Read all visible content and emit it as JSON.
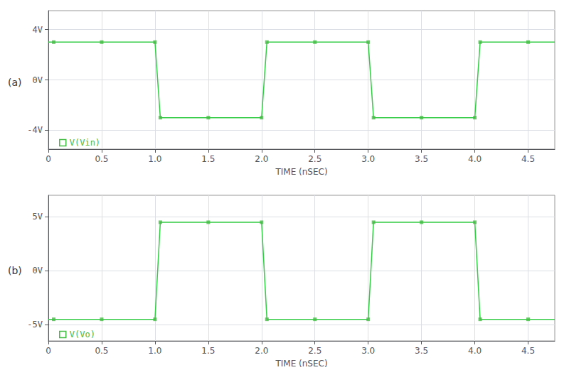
{
  "chart_data": [
    {
      "type": "line",
      "title": "(a)",
      "xlabel": "TIME (nSEC)",
      "xlim": [
        0,
        4.75
      ],
      "xticks": [
        0,
        0.5,
        {
          "value": 1.0,
          "label": "1.0"
        },
        1.5,
        {
          "value": 2.0,
          "label": "2.0"
        },
        2.5,
        {
          "value": 3.0,
          "label": "3.0"
        },
        3.5,
        {
          "value": 4.0,
          "label": "4.0"
        },
        4.5
      ],
      "ylim": [
        -5.5,
        5.5
      ],
      "yticks": [
        {
          "value": 4,
          "label": "4V"
        },
        {
          "value": 0,
          "label": "0V"
        },
        {
          "value": -4,
          "label": "-4V"
        }
      ],
      "grid": true,
      "legend": "lower left",
      "series": [
        {
          "name": "V(Vin)",
          "type": "line",
          "color": "#33cc44",
          "x": [
            0.0,
            0.05,
            1.0,
            1.05,
            2.0,
            2.05,
            3.0,
            3.05,
            4.0,
            4.05,
            4.75
          ],
          "values": [
            3.0,
            3.0,
            3.0,
            -3.0,
            -3.0,
            3.0,
            3.0,
            -3.0,
            -3.0,
            3.0,
            3.0
          ]
        },
        {
          "name": "V(Vin)",
          "type": "scatter",
          "marker": "square",
          "color": "#44bb44",
          "x": [
            0.05,
            0.5,
            1.0,
            1.05,
            1.5,
            2.0,
            2.05,
            2.5,
            3.0,
            3.05,
            3.5,
            4.0,
            4.05,
            4.5
          ],
          "values": [
            3.0,
            3.0,
            3.0,
            -3.0,
            -3.0,
            -3.0,
            3.0,
            3.0,
            3.0,
            -3.0,
            -3.0,
            -3.0,
            3.0,
            3.0
          ]
        }
      ]
    },
    {
      "type": "line",
      "title": "(b)",
      "xlabel": "TIME (nSEC)",
      "xlim": [
        0,
        4.75
      ],
      "xticks": [
        0,
        0.5,
        {
          "value": 1.0,
          "label": "1.0"
        },
        1.5,
        {
          "value": 2.0,
          "label": "2.0"
        },
        2.5,
        {
          "value": 3.0,
          "label": "3.0"
        },
        3.5,
        {
          "value": 4.0,
          "label": "4.0"
        },
        4.5
      ],
      "ylim": [
        -6.5,
        7.0
      ],
      "yticks": [
        {
          "value": 5,
          "label": "5V"
        },
        {
          "value": 0,
          "label": "0V"
        },
        {
          "value": -5,
          "label": "-5V"
        }
      ],
      "grid": true,
      "legend": "lower left",
      "series": [
        {
          "name": "V(Vo)",
          "type": "line",
          "color": "#33cc44",
          "x": [
            0.0,
            0.05,
            1.0,
            1.05,
            2.0,
            2.05,
            3.0,
            3.05,
            4.0,
            4.05,
            4.75
          ],
          "values": [
            -4.5,
            -4.5,
            -4.5,
            4.5,
            4.5,
            -4.5,
            -4.5,
            4.5,
            4.5,
            -4.5,
            -4.5
          ]
        },
        {
          "name": "V(Vo)",
          "type": "scatter",
          "marker": "square",
          "color": "#44bb44",
          "x": [
            0.05,
            0.5,
            1.0,
            1.05,
            1.5,
            2.0,
            2.05,
            2.5,
            3.0,
            3.05,
            3.5,
            4.0,
            4.05,
            4.5
          ],
          "values": [
            -4.5,
            -4.5,
            -4.5,
            4.5,
            4.5,
            4.5,
            -4.5,
            -4.5,
            -4.5,
            4.5,
            4.5,
            4.5,
            -4.5,
            -4.5
          ]
        }
      ]
    }
  ]
}
